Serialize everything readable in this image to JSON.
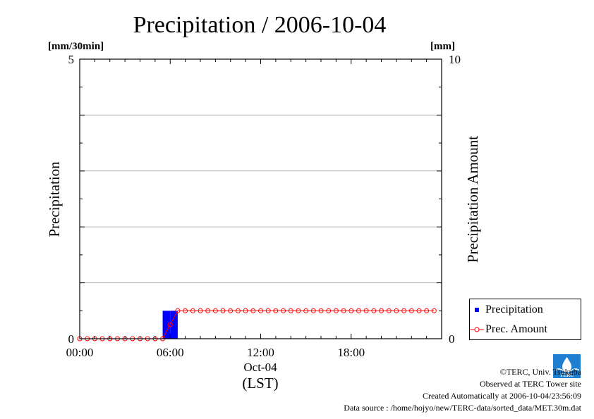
{
  "chart_data": {
    "type": "bar+line",
    "title": "Precipitation / 2006-10-04",
    "ylabel_left": "Precipitation",
    "ylabel_right": "Precipitation Amount",
    "unit_left": "[mm/30min]",
    "unit_right": "[mm]",
    "ylim_left": [
      0,
      5
    ],
    "ylim_right": [
      0,
      10
    ],
    "y_ticks_left": [
      "0",
      "5"
    ],
    "y_ticks_right": [
      "0",
      "10"
    ],
    "x_range_hours": [
      0,
      24
    ],
    "x_ticks": [
      {
        "hour": 0,
        "label": "00:00"
      },
      {
        "hour": 6,
        "label": "06:00"
      },
      {
        "hour": 12,
        "label": "12:00"
      },
      {
        "hour": 18,
        "label": "18:00"
      }
    ],
    "x_sublabel": "Oct-04",
    "xlabel": "(LST)",
    "grid": true,
    "legend_position": "bottom-right",
    "series": [
      {
        "name": "Precipitation",
        "kind": "bar",
        "color": "#0000ff",
        "bars": [
          {
            "start_hour": 5.5,
            "end_hour": 6.0,
            "value": 0.5
          },
          {
            "start_hour": 6.0,
            "end_hour": 6.5,
            "value": 0.5
          }
        ]
      },
      {
        "name": "Prec. Amount",
        "kind": "line",
        "color": "#ff0000",
        "interval_hours": 0.5,
        "values": [
          0,
          0,
          0,
          0,
          0,
          0,
          0,
          0,
          0,
          0,
          0,
          0,
          0.5,
          1,
          1,
          1,
          1,
          1,
          1,
          1,
          1,
          1,
          1,
          1,
          1,
          1,
          1,
          1,
          1,
          1,
          1,
          1,
          1,
          1,
          1,
          1,
          1,
          1,
          1,
          1,
          1,
          1,
          1,
          1,
          1,
          1,
          1,
          1
        ]
      }
    ]
  },
  "legend": {
    "precipitation_label": "Precipitation",
    "amount_label": "Prec. Amount"
  },
  "credits": {
    "line1": "©TERC, Univ. Tsukuba",
    "line2": "Observed at TERC Tower site",
    "line3": "Created Automatically at 2006-10-04/23:56:09",
    "line4": "Data source : /home/hojyo/new/TERC-data/sorted_data/MET.30m.dat"
  },
  "logo": {
    "text": "TERC",
    "color": "#1e7fd0"
  }
}
